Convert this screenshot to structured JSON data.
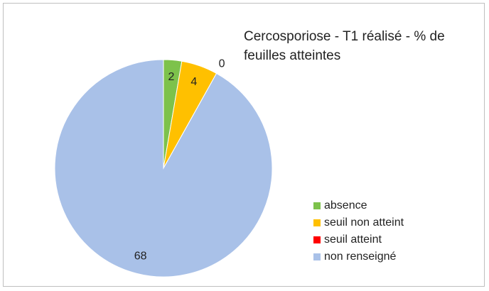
{
  "chart_data": {
    "type": "pie",
    "title": "Cercosporiose - T1 réalisé - % de feuilles atteintes",
    "categories": [
      "absence",
      "seuil non atteint",
      "seuil atteint",
      "non renseigné"
    ],
    "values": [
      2,
      4,
      0,
      68
    ],
    "colors": [
      "#7dc24b",
      "#ffc000",
      "#ff0000",
      "#a9c1e8"
    ],
    "legend": "right"
  }
}
